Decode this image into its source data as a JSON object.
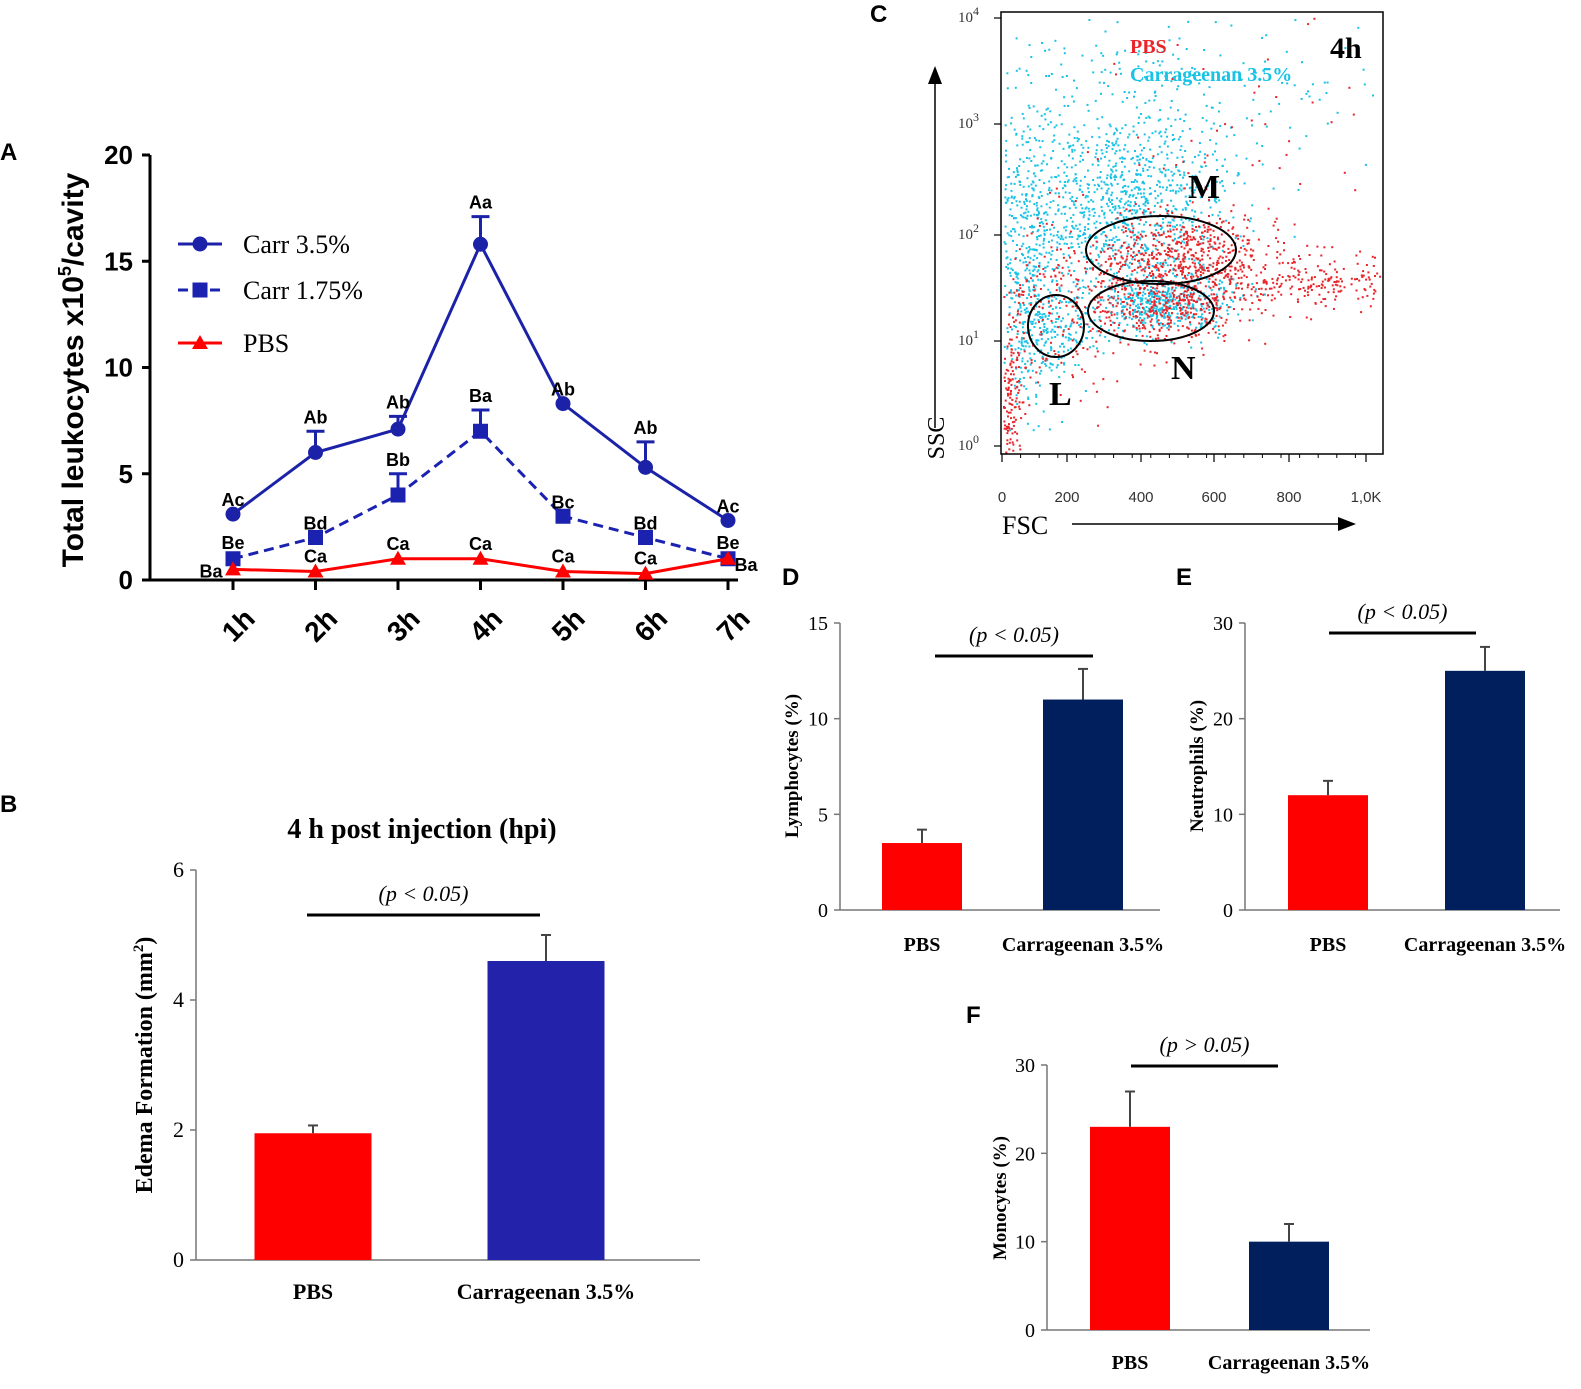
{
  "panel_labels": {
    "A": "A",
    "B": "B",
    "C": "C",
    "D": "D",
    "E": "E",
    "F": "F"
  },
  "colors": {
    "carr35": "#1c22a8",
    "carr175": "#1c22b0",
    "pbs": "#ff0000",
    "edema_carr": "#2222aa",
    "bar_navy": "#001f5c",
    "flow_pbs": "#e8252a",
    "flow_carr": "#19c3e6"
  },
  "chart_data": [
    {
      "panel": "A",
      "type": "line",
      "ylabel_main": "Total leukocytes x10",
      "ylabel_sup": "5",
      "ylabel_tail": "/cavity",
      "ylim": [
        0,
        20
      ],
      "yticks": [
        "0",
        "5",
        "10",
        "15",
        "20"
      ],
      "categories": [
        "1h",
        "2h",
        "3h",
        "4h",
        "5h",
        "6h",
        "7h"
      ],
      "series": [
        {
          "name": "Carr 3.5%",
          "marker": "circle",
          "dash": false,
          "values": [
            3.1,
            6.0,
            7.1,
            15.8,
            8.3,
            5.3,
            2.8
          ],
          "errors": [
            0.0,
            1.0,
            0.6,
            1.3,
            0.0,
            1.2,
            0.0
          ],
          "letters": [
            "Ac",
            "Ab",
            "Ab",
            "Aa",
            "Ab",
            "Ab",
            "Ac"
          ]
        },
        {
          "name": "Carr 1.75%",
          "marker": "square",
          "dash": true,
          "values": [
            1.0,
            2.0,
            4.0,
            7.0,
            3.0,
            2.0,
            1.0
          ],
          "errors": [
            0.0,
            0.0,
            1.0,
            1.0,
            0.0,
            0.0,
            0.0
          ],
          "letters": [
            "Be",
            "Bd",
            "Bb",
            "Ba",
            "Bc",
            "Bd",
            "Be"
          ]
        },
        {
          "name": "PBS",
          "marker": "triangle",
          "dash": false,
          "values": [
            0.5,
            0.4,
            1.0,
            1.0,
            0.4,
            0.3,
            1.0
          ],
          "errors": [
            0,
            0,
            0,
            0,
            0,
            0,
            0
          ],
          "letters": [
            "Ba",
            "Ca",
            "Ca",
            "Ca",
            "Ca",
            "Ca",
            "Ba"
          ]
        }
      ]
    },
    {
      "panel": "B",
      "type": "bar",
      "title": "4 h post injection (hpi)",
      "ylabel": "Edema Formation (mm",
      "ylabel_sup": "2",
      "ylabel_tail": ")",
      "ylim": [
        0,
        6
      ],
      "yticks": [
        "0",
        "2",
        "4",
        "6"
      ],
      "categories": [
        "PBS",
        "Carrageenan 3.5%"
      ],
      "values": [
        1.95,
        4.6
      ],
      "errors": [
        0.12,
        0.4
      ],
      "significance": "(p < 0.05)"
    },
    {
      "panel": "C",
      "type": "scatter",
      "legend": [
        "PBS",
        "Carrageenan 3.5%"
      ],
      "time_label": "4h",
      "xlabel": "FSC",
      "ylabel": "SSC",
      "xticks": [
        "0",
        "200",
        "400",
        "600",
        "800",
        "1,0K"
      ],
      "yticks_base": [
        "10",
        "10",
        "10",
        "10",
        "10"
      ],
      "yticks_exp": [
        "0",
        "1",
        "2",
        "3",
        "4"
      ],
      "gates": [
        "M",
        "N",
        "L"
      ]
    },
    {
      "panel": "D",
      "type": "bar",
      "ylabel": "Lymphocytes (%)",
      "ylim": [
        0,
        15
      ],
      "yticks": [
        "0",
        "5",
        "10",
        "15"
      ],
      "categories": [
        "PBS",
        "Carrageenan 3.5%"
      ],
      "values": [
        3.5,
        11.0
      ],
      "errors": [
        0.7,
        1.6
      ],
      "significance": "(p < 0.05)"
    },
    {
      "panel": "E",
      "type": "bar",
      "ylabel": "Neutrophils (%)",
      "ylim": [
        0,
        30
      ],
      "yticks": [
        "0",
        "10",
        "20",
        "30"
      ],
      "categories": [
        "PBS",
        "Carrageenan 3.5%"
      ],
      "values": [
        12.0,
        25.0
      ],
      "errors": [
        1.5,
        2.5
      ],
      "significance": "(p < 0.05)"
    },
    {
      "panel": "F",
      "type": "bar",
      "ylabel": "Monocytes (%)",
      "ylim": [
        0,
        30
      ],
      "yticks": [
        "0",
        "10",
        "20",
        "30"
      ],
      "categories": [
        "PBS",
        "Carrageenan 3.5%"
      ],
      "values": [
        23.0,
        10.0
      ],
      "errors": [
        4.0,
        2.0
      ],
      "significance": "(p > 0.05)"
    }
  ]
}
